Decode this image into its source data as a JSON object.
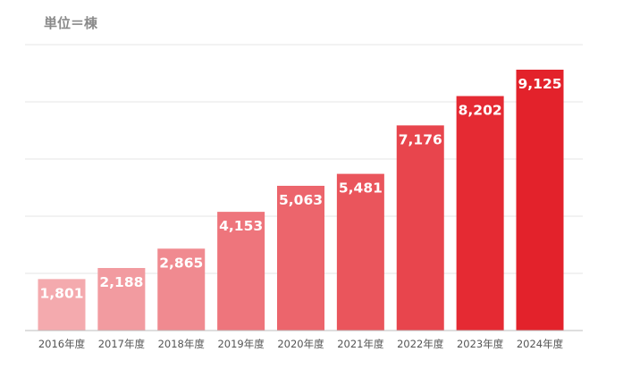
{
  "chart_data": {
    "type": "bar",
    "title": "",
    "unit_label": "単位＝棟",
    "xlabel": "",
    "ylabel": "",
    "categories": [
      "2016年度",
      "2017年度",
      "2018年度",
      "2019年度",
      "2020年度",
      "2021年度",
      "2022年度",
      "2023年度",
      "2024年度"
    ],
    "values": [
      1801,
      2188,
      2865,
      4153,
      5063,
      5481,
      7176,
      8202,
      9125
    ],
    "value_labels": [
      "1,801",
      "2,188",
      "2,865",
      "4,153",
      "5,063",
      "5,481",
      "7,176",
      "8,202",
      "9,125"
    ],
    "bar_colors": [
      "#f4aaae",
      "#f29ba0",
      "#f08a90",
      "#ee757c",
      "#ec656c",
      "#ea555c",
      "#e8454d",
      "#e52a33",
      "#e3222b"
    ],
    "ylim": [
      0,
      10000
    ],
    "grid": true,
    "legend": "none"
  }
}
